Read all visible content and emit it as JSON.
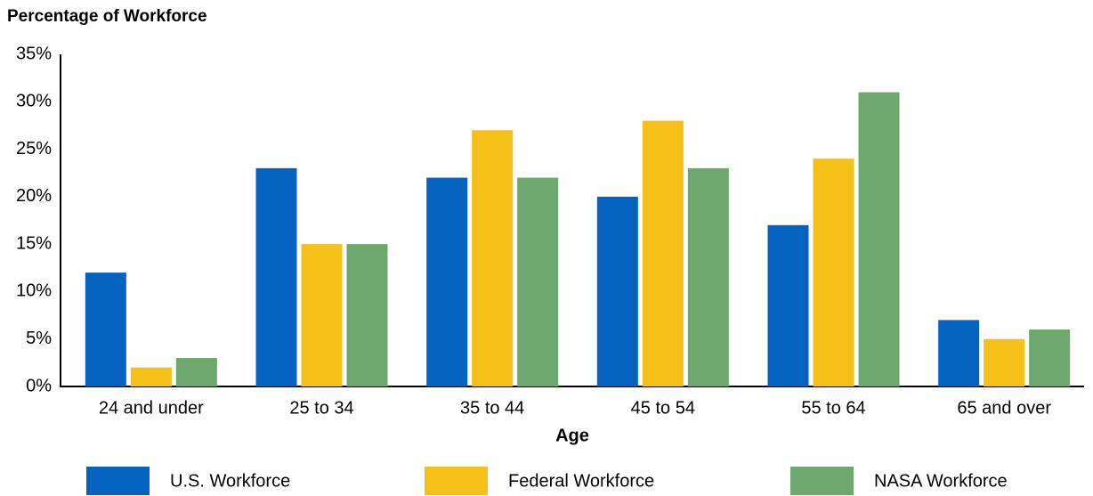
{
  "chart_data": {
    "type": "bar",
    "title": "Percentage of Workforce",
    "xlabel": "Age",
    "categories": [
      "24 and under",
      "25 to 34",
      "35 to 44",
      "45 to 54",
      "55 to 64",
      "65 and over"
    ],
    "series": [
      {
        "name": "U.S. Workforce",
        "color": "#0563c0",
        "values": [
          12,
          23,
          22,
          20,
          17,
          7
        ]
      },
      {
        "name": "Federal Workforce",
        "color": "#f5c018",
        "values": [
          2,
          15,
          27,
          28,
          24,
          5
        ]
      },
      {
        "name": "NASA Workforce",
        "color": "#6ea86e",
        "values": [
          3,
          15,
          22,
          23,
          31,
          6
        ]
      }
    ],
    "ylim": [
      0,
      35
    ],
    "yticks": [
      {
        "value": 0,
        "label": "0%"
      },
      {
        "value": 5,
        "label": "5%"
      },
      {
        "value": 10,
        "label": "10%"
      },
      {
        "value": 15,
        "label": "15%"
      },
      {
        "value": 20,
        "label": "20%"
      },
      {
        "value": 25,
        "label": "25%"
      },
      {
        "value": 30,
        "label": "30%"
      },
      {
        "value": 35,
        "label": "35%"
      }
    ],
    "grid": false,
    "legend": "bottom"
  }
}
